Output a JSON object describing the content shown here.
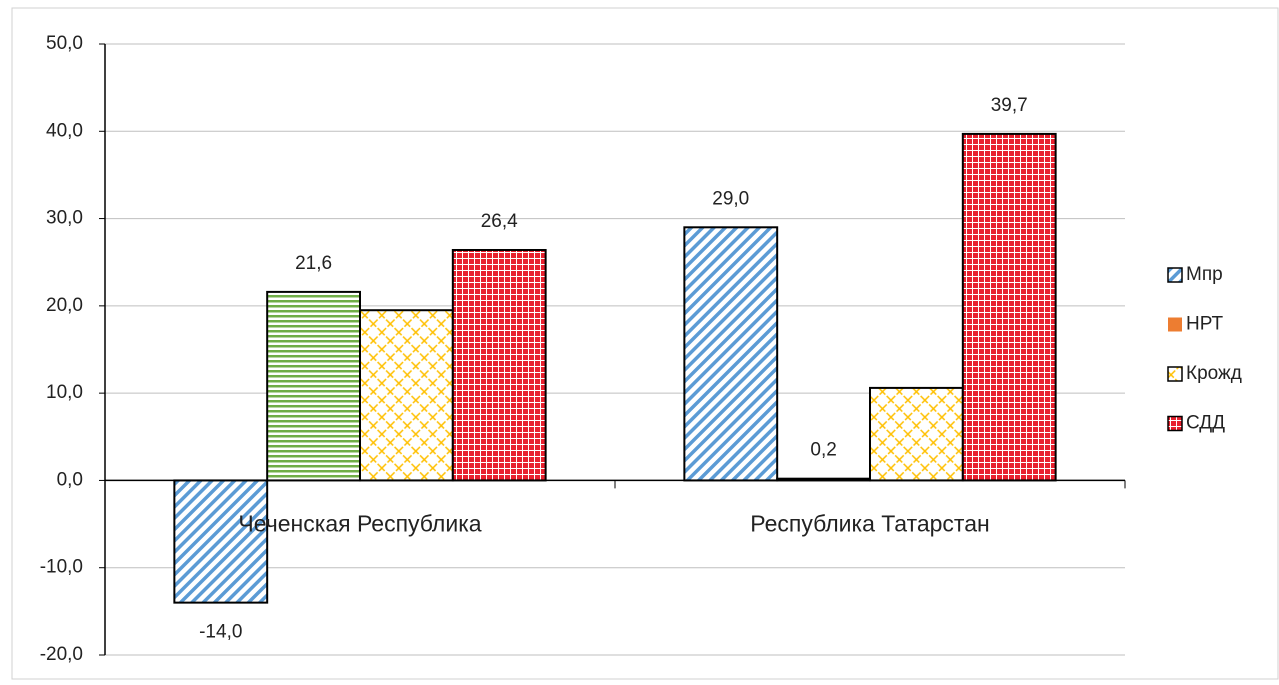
{
  "chart_data": {
    "type": "bar",
    "categories": [
      "Чеченская Республика",
      "Республика Татарстан"
    ],
    "series": [
      {
        "name": "Мпр",
        "color": "#5b9bd5",
        "pattern": "diagonal",
        "values": [
          -14.0,
          29.0
        ],
        "value_labels": [
          "-14,0",
          "29,0"
        ]
      },
      {
        "name": "НРТ",
        "color": "#ed7d31",
        "pattern": "solid",
        "point_colors": [
          "#70ad47",
          "#ed7d31"
        ],
        "point_patterns": [
          "horizontal",
          "solid"
        ],
        "values": [
          21.6,
          0.2
        ],
        "value_labels": [
          "21,6",
          "0,2"
        ]
      },
      {
        "name": "Крожд",
        "color": "#ffc000",
        "pattern": "lattice",
        "values": [
          19.5,
          10.6
        ],
        "value_labels": [
          null,
          null
        ]
      },
      {
        "name": "СДД",
        "color": "#e8212f",
        "pattern": "grid",
        "values": [
          26.4,
          39.7
        ],
        "value_labels": [
          "26,4",
          "39,7"
        ]
      }
    ],
    "ylim": [
      -20,
      50
    ],
    "yticks": [
      {
        "value": -20,
        "label": "-20,0"
      },
      {
        "value": -10,
        "label": "-10,0"
      },
      {
        "value": 0,
        "label": "0,0"
      },
      {
        "value": 10,
        "label": "10,0"
      },
      {
        "value": 20,
        "label": "20,0"
      },
      {
        "value": 30,
        "label": "30,0"
      },
      {
        "value": 40,
        "label": "40,0"
      },
      {
        "value": 50,
        "label": "50,0"
      }
    ],
    "grid": true,
    "legend": "right"
  }
}
